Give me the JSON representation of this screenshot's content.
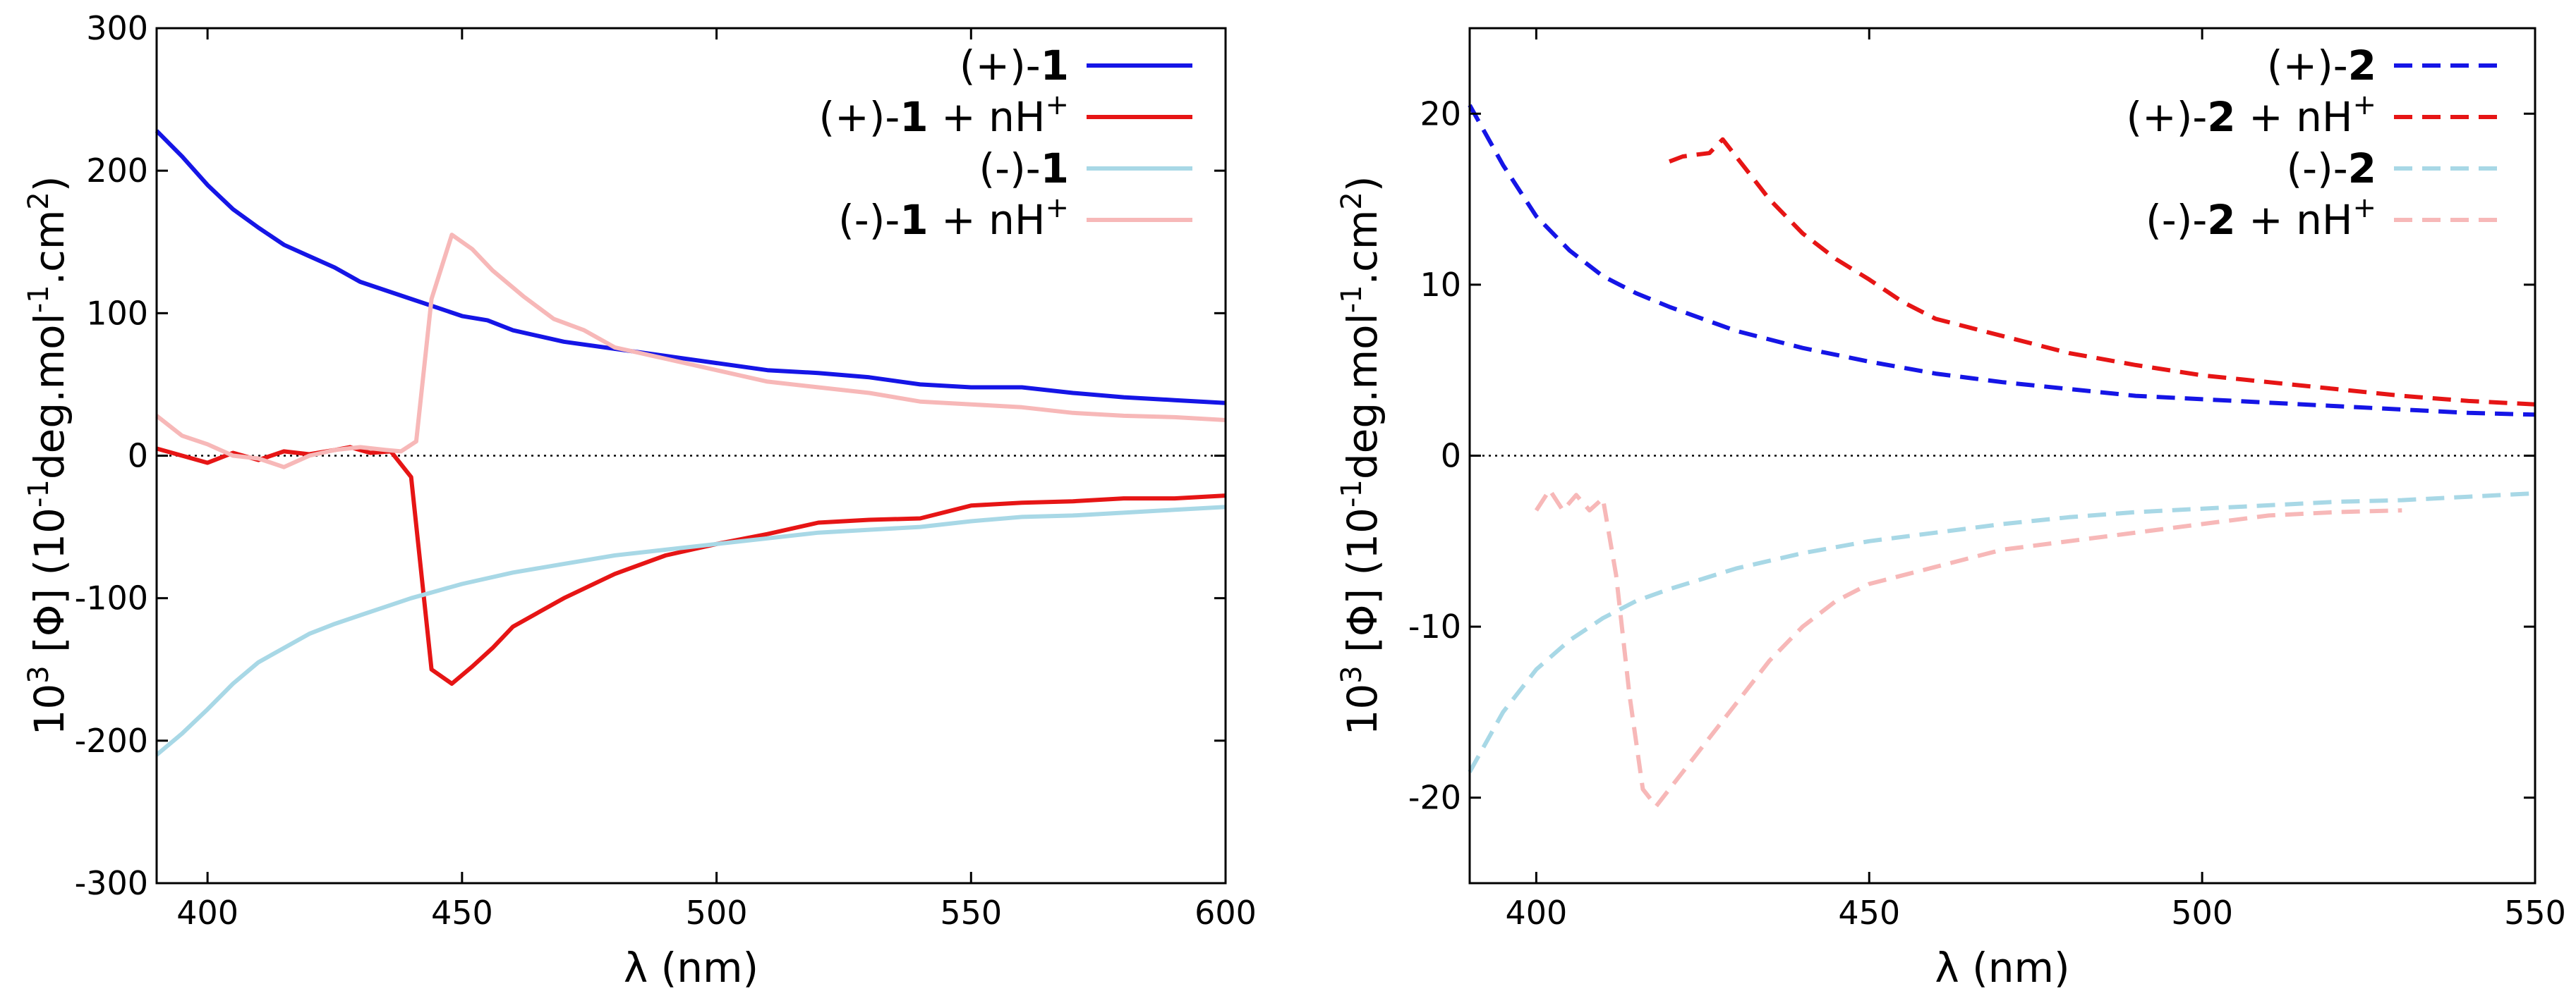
{
  "chart_data": [
    {
      "type": "line",
      "xlabel": "λ (nm)",
      "ylabel": "10³ [Φ] (10⁻¹deg.mol⁻¹.cm²)",
      "ylabel_parts": {
        "a": "10",
        "b": "3",
        "c": " [Φ] (10",
        "d": "-1",
        "e": "deg.mol",
        "f": "-1",
        "g": ".cm",
        "h": "2",
        "i": ")"
      },
      "xlim": [
        390,
        600
      ],
      "ylim": [
        -300,
        300
      ],
      "x_ticks": [
        400,
        450,
        500,
        550,
        600
      ],
      "y_ticks": [
        -300,
        -200,
        -100,
        0,
        100,
        200,
        300
      ],
      "series": [
        {
          "name": "(+)-1",
          "legend": {
            "pre": "(+)-",
            "bold": "1",
            "post": "",
            "sup": ""
          },
          "color": "#1515e6",
          "dash": "solid",
          "x": [
            390,
            395,
            400,
            405,
            410,
            415,
            420,
            425,
            430,
            435,
            440,
            445,
            450,
            455,
            460,
            465,
            470,
            480,
            490,
            500,
            510,
            520,
            530,
            540,
            550,
            560,
            570,
            580,
            590,
            600
          ],
          "y": [
            228,
            210,
            190,
            173,
            160,
            148,
            140,
            132,
            122,
            116,
            110,
            104,
            98,
            95,
            88,
            84,
            80,
            75,
            70,
            65,
            60,
            58,
            55,
            50,
            48,
            48,
            44,
            41,
            39,
            37
          ]
        },
        {
          "name": "(+)-1 + nH+",
          "legend": {
            "pre": "(+)-",
            "bold": "1",
            "post": " + nH",
            "sup": "+"
          },
          "color": "#e61515",
          "dash": "solid",
          "x": [
            390,
            395,
            400,
            405,
            410,
            415,
            420,
            425,
            428,
            432,
            436,
            440,
            444,
            448,
            452,
            456,
            460,
            470,
            480,
            490,
            500,
            510,
            520,
            530,
            540,
            550,
            560,
            570,
            580,
            590,
            600
          ],
          "y": [
            5,
            0,
            -5,
            2,
            -3,
            3,
            1,
            4,
            6,
            2,
            3,
            -15,
            -150,
            -160,
            -148,
            -135,
            -120,
            -100,
            -83,
            -70,
            -62,
            -55,
            -47,
            -45,
            -44,
            -35,
            -33,
            -32,
            -30,
            -30,
            -28
          ]
        },
        {
          "name": "(-)-1",
          "legend": {
            "pre": "(-)-",
            "bold": "1",
            "post": "",
            "sup": ""
          },
          "color": "#a8d8e6",
          "dash": "solid",
          "x": [
            390,
            395,
            400,
            405,
            410,
            415,
            420,
            425,
            430,
            435,
            440,
            445,
            450,
            460,
            470,
            480,
            490,
            500,
            510,
            520,
            530,
            540,
            550,
            560,
            570,
            580,
            590,
            600
          ],
          "y": [
            -210,
            -195,
            -178,
            -160,
            -145,
            -135,
            -125,
            -118,
            -112,
            -106,
            -100,
            -95,
            -90,
            -82,
            -76,
            -70,
            -66,
            -62,
            -58,
            -54,
            -52,
            -50,
            -46,
            -43,
            -42,
            -40,
            -38,
            -36
          ]
        },
        {
          "name": "(-)-1 + nH+",
          "legend": {
            "pre": "(-)-",
            "bold": "1",
            "post": " + nH",
            "sup": "+"
          },
          "color": "#f7b8b8",
          "dash": "solid",
          "x": [
            390,
            395,
            400,
            405,
            410,
            415,
            420,
            425,
            430,
            435,
            438,
            441,
            444,
            448,
            452,
            456,
            462,
            468,
            474,
            480,
            490,
            500,
            510,
            520,
            530,
            540,
            550,
            560,
            570,
            580,
            590,
            600
          ],
          "y": [
            28,
            14,
            8,
            0,
            -2,
            -8,
            0,
            4,
            6,
            4,
            3,
            10,
            110,
            155,
            145,
            130,
            112,
            96,
            88,
            76,
            68,
            60,
            52,
            48,
            44,
            38,
            36,
            34,
            30,
            28,
            27,
            25
          ]
        }
      ]
    },
    {
      "type": "line",
      "xlabel": "λ (nm)",
      "ylabel": "10³ [Φ] (10⁻¹deg.mol⁻¹.cm²)",
      "ylabel_parts": {
        "a": "10",
        "b": "3",
        "c": " [Φ] (10",
        "d": "-1",
        "e": "deg.mol",
        "f": "-1",
        "g": ".cm",
        "h": "2",
        "i": ")"
      },
      "xlim": [
        390,
        550
      ],
      "ylim": [
        -25,
        25
      ],
      "x_ticks": [
        400,
        450,
        500,
        550
      ],
      "y_ticks": [
        -20,
        -10,
        0,
        10,
        20
      ],
      "series": [
        {
          "name": "(+)-2",
          "legend": {
            "pre": "(+)-",
            "bold": "2",
            "post": "",
            "sup": ""
          },
          "color": "#1515e6",
          "dash": "dashed",
          "x": [
            390,
            395,
            400,
            405,
            410,
            415,
            420,
            425,
            430,
            440,
            450,
            460,
            470,
            480,
            490,
            500,
            510,
            520,
            530,
            540,
            550
          ],
          "y": [
            20.5,
            17,
            14,
            12,
            10.5,
            9.5,
            8.7,
            8,
            7.3,
            6.3,
            5.5,
            4.8,
            4.3,
            3.9,
            3.5,
            3.3,
            3.1,
            2.9,
            2.7,
            2.5,
            2.4
          ]
        },
        {
          "name": "(+)-2 + nH+",
          "legend": {
            "pre": "(+)-",
            "bold": "2",
            "post": " + nH",
            "sup": "+"
          },
          "color": "#e61515",
          "dash": "dashed",
          "x": [
            420,
            422,
            424,
            426,
            428,
            430,
            432,
            435,
            440,
            445,
            450,
            455,
            460,
            470,
            480,
            490,
            500,
            510,
            520,
            530,
            540,
            550
          ],
          "y": [
            17.2,
            17.5,
            17.6,
            17.7,
            18.5,
            17.5,
            16.5,
            15,
            13,
            11.5,
            10.3,
            9,
            8,
            7,
            6,
            5.3,
            4.7,
            4.3,
            3.9,
            3.5,
            3.2,
            3
          ]
        },
        {
          "name": "(-)-2",
          "legend": {
            "pre": "(-)-",
            "bold": "2",
            "post": "",
            "sup": ""
          },
          "color": "#a8d8e6",
          "dash": "dashed",
          "x": [
            390,
            395,
            400,
            405,
            410,
            415,
            420,
            425,
            430,
            440,
            450,
            460,
            470,
            480,
            490,
            500,
            510,
            520,
            530,
            540,
            550
          ],
          "y": [
            -18.5,
            -15,
            -12.5,
            -10.8,
            -9.5,
            -8.5,
            -7.8,
            -7.2,
            -6.6,
            -5.7,
            -5,
            -4.5,
            -4,
            -3.6,
            -3.3,
            -3.1,
            -2.9,
            -2.7,
            -2.6,
            -2.4,
            -2.2
          ]
        },
        {
          "name": "(-)-2 + nH+",
          "legend": {
            "pre": "(-)-",
            "bold": "2",
            "post": " + nH",
            "sup": "+"
          },
          "color": "#f7b8b8",
          "dash": "dashed",
          "x": [
            400,
            402,
            404,
            406,
            408,
            410,
            412,
            414,
            416,
            418,
            420,
            425,
            430,
            435,
            440,
            445,
            450,
            460,
            470,
            480,
            490,
            500,
            510,
            520,
            530
          ],
          "y": [
            -3.2,
            -2,
            -3.2,
            -2.3,
            -3.2,
            -2.5,
            -7,
            -14,
            -19.5,
            -20.5,
            -19.5,
            -17,
            -14.5,
            -12,
            -10,
            -8.5,
            -7.5,
            -6.5,
            -5.5,
            -5,
            -4.5,
            -4,
            -3.5,
            -3.3,
            -3.2
          ]
        }
      ]
    }
  ]
}
